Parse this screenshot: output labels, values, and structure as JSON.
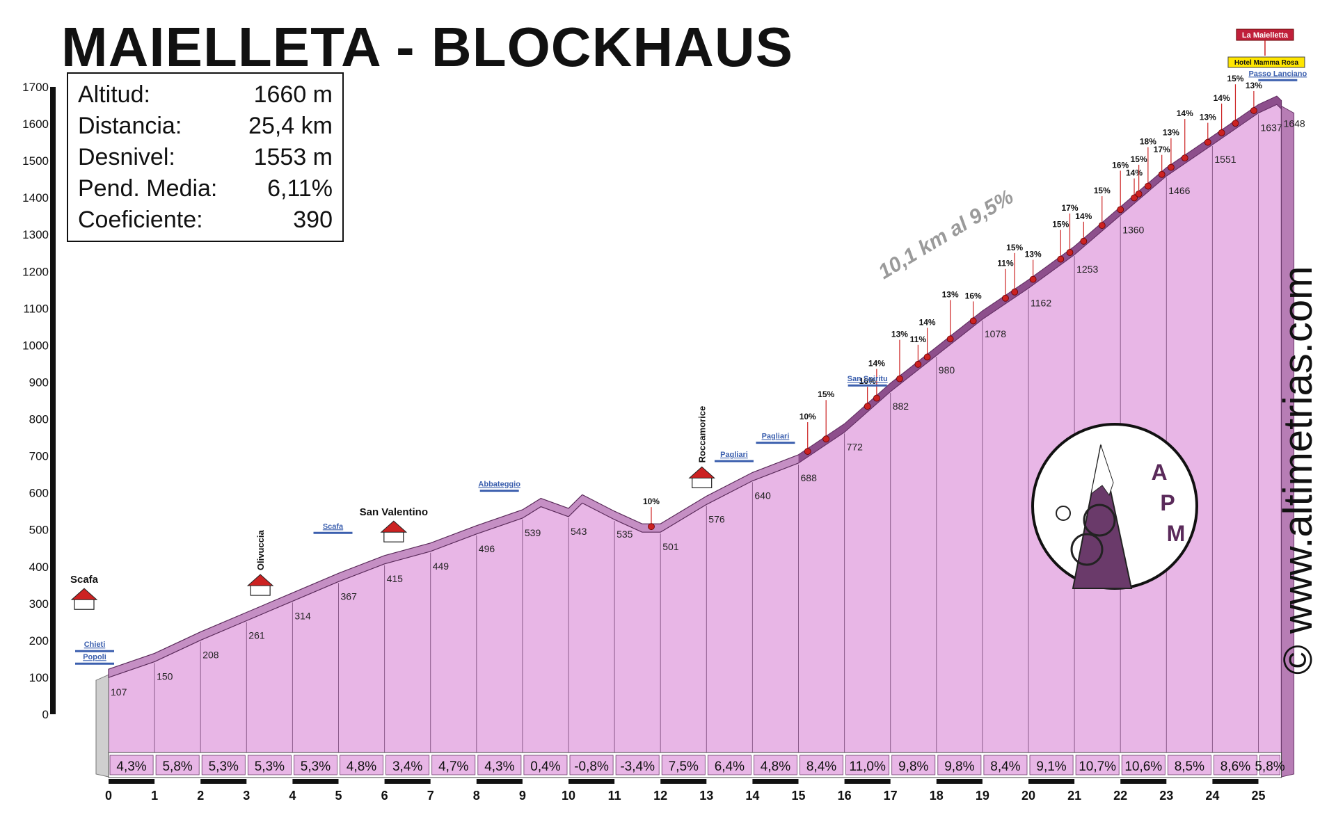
{
  "title": "MAIELLETA - BLOCKHAUS",
  "stats": [
    {
      "label": "Altitud:",
      "value": "1660 m"
    },
    {
      "label": "Distancia:",
      "value": "25,4 km"
    },
    {
      "label": "Desnivel:",
      "value": "1553 m"
    },
    {
      "label": "Pend. Media:",
      "value": "6,11%"
    },
    {
      "label": "Coeficiente:",
      "value": "390"
    }
  ],
  "watermark": "© www.altimetrias.com",
  "logo_text": [
    "A",
    "P",
    "M"
  ],
  "segment_label": "10,1 km al 9,5%",
  "colors": {
    "profile": "#e8b6e6",
    "profile_dark": "#7a3a7a",
    "road": "#c58fc4",
    "red": "#cc2222",
    "blue": "#3b5fae"
  },
  "chart_data": {
    "type": "area",
    "xlabel": "",
    "ylabel": "",
    "xlim": [
      0,
      25.6
    ],
    "ylim": [
      0,
      1700
    ],
    "x_ticks": [
      "0",
      "1",
      "2",
      "3",
      "4",
      "5",
      "6",
      "7",
      "8",
      "9",
      "10",
      "11",
      "12",
      "13",
      "14",
      "15",
      "16",
      "17",
      "18",
      "19",
      "20",
      "21",
      "22",
      "23",
      "24",
      "25"
    ],
    "y_ticks": [
      "0",
      "100",
      "200",
      "300",
      "400",
      "500",
      "600",
      "700",
      "800",
      "900",
      "1000",
      "1100",
      "1200",
      "1300",
      "1400",
      "1500",
      "1600",
      "1700"
    ],
    "profile": [
      [
        0,
        107
      ],
      [
        1,
        150
      ],
      [
        2,
        208
      ],
      [
        3,
        261
      ],
      [
        4,
        314
      ],
      [
        5,
        367
      ],
      [
        6,
        415
      ],
      [
        7,
        449
      ],
      [
        8,
        496
      ],
      [
        9,
        539
      ],
      [
        9.4,
        570
      ],
      [
        10,
        543
      ],
      [
        10.3,
        580
      ],
      [
        11,
        535
      ],
      [
        11.6,
        501
      ],
      [
        12,
        501
      ],
      [
        13,
        576
      ],
      [
        14,
        640
      ],
      [
        15,
        688
      ],
      [
        16,
        772
      ],
      [
        17,
        882
      ],
      [
        18,
        980
      ],
      [
        19,
        1078
      ],
      [
        20,
        1162
      ],
      [
        21,
        1253
      ],
      [
        22,
        1360
      ],
      [
        23,
        1466
      ],
      [
        24,
        1551
      ],
      [
        25,
        1637
      ],
      [
        25.4,
        1660
      ],
      [
        25.5,
        1648
      ]
    ],
    "km_gradients": [
      "4,3%",
      "5,8%",
      "5,3%",
      "5,3%",
      "5,3%",
      "4,8%",
      "3,4%",
      "4,7%",
      "4,3%",
      "0,4%",
      "-0,8%",
      "-3,4%",
      "7,5%",
      "6,4%",
      "4,8%",
      "8,4%",
      "11,0%",
      "9,8%",
      "9,8%",
      "8,4%",
      "9,1%",
      "10,7%",
      "10,6%",
      "8,5%",
      "8,6%",
      "5,8%"
    ],
    "km_altitudes": [
      {
        "x": 0,
        "label": "107"
      },
      {
        "x": 1,
        "label": "150"
      },
      {
        "x": 2,
        "label": "208"
      },
      {
        "x": 3,
        "label": "261"
      },
      {
        "x": 4,
        "label": "314"
      },
      {
        "x": 5,
        "label": "367"
      },
      {
        "x": 6,
        "label": "415"
      },
      {
        "x": 7,
        "label": "449"
      },
      {
        "x": 8,
        "label": "496"
      },
      {
        "x": 9,
        "label": "539"
      },
      {
        "x": 10,
        "label": "543"
      },
      {
        "x": 11,
        "label": "535"
      },
      {
        "x": 12,
        "label": "501"
      },
      {
        "x": 13,
        "label": "576"
      },
      {
        "x": 14,
        "label": "640"
      },
      {
        "x": 15,
        "label": "688"
      },
      {
        "x": 16,
        "label": "772"
      },
      {
        "x": 17,
        "label": "882"
      },
      {
        "x": 18,
        "label": "980"
      },
      {
        "x": 19,
        "label": "1078"
      },
      {
        "x": 20,
        "label": "1162"
      },
      {
        "x": 21,
        "label": "1253"
      },
      {
        "x": 22,
        "label": "1360"
      },
      {
        "x": 23,
        "label": "1466"
      },
      {
        "x": 24,
        "label": "1551"
      },
      {
        "x": 25,
        "label": "1637"
      },
      {
        "x": 25.5,
        "label": "1648"
      }
    ],
    "steep_ramps": [
      {
        "x": 11.8,
        "label": "10%"
      },
      {
        "x": 15.2,
        "label": "10%"
      },
      {
        "x": 15.6,
        "label": "15%"
      },
      {
        "x": 16.5,
        "label": "16%"
      },
      {
        "x": 16.7,
        "label": "14%"
      },
      {
        "x": 17.2,
        "label": "13%"
      },
      {
        "x": 17.6,
        "label": "11%"
      },
      {
        "x": 17.8,
        "label": "14%"
      },
      {
        "x": 18.3,
        "label": "13%"
      },
      {
        "x": 18.8,
        "label": "16%"
      },
      {
        "x": 19.5,
        "label": "11%"
      },
      {
        "x": 19.7,
        "label": "15%"
      },
      {
        "x": 20.1,
        "label": "13%"
      },
      {
        "x": 20.7,
        "label": "15%"
      },
      {
        "x": 20.9,
        "label": "17%"
      },
      {
        "x": 21.2,
        "label": "14%"
      },
      {
        "x": 21.6,
        "label": "15%"
      },
      {
        "x": 22.0,
        "label": "16%"
      },
      {
        "x": 22.3,
        "label": "14%"
      },
      {
        "x": 22.4,
        "label": "15%"
      },
      {
        "x": 22.6,
        "label": "18%"
      },
      {
        "x": 22.9,
        "label": "17%"
      },
      {
        "x": 23.1,
        "label": "13%"
      },
      {
        "x": 23.4,
        "label": "14%"
      },
      {
        "x": 23.9,
        "label": "13%"
      },
      {
        "x": 24.2,
        "label": "14%"
      },
      {
        "x": 24.5,
        "label": "15%"
      },
      {
        "x": 24.9,
        "label": "13%"
      }
    ],
    "places": [
      {
        "x": 0,
        "label": "Scafa"
      },
      {
        "x": 3.3,
        "label": "Olivuccia"
      },
      {
        "x": 6.2,
        "label": "San Valentino"
      },
      {
        "x": 12.9,
        "label": "Roccamorice"
      }
    ],
    "junctions": [
      {
        "x": 0,
        "label": "Chieti"
      },
      {
        "x": 0,
        "label": "Popoli"
      },
      {
        "x": 5,
        "label": "Scafa"
      },
      {
        "x": 8.8,
        "label": "Abbateggio"
      },
      {
        "x": 13.6,
        "label": "Pagliari"
      },
      {
        "x": 14.5,
        "label": "Pagliari"
      },
      {
        "x": 16.5,
        "label": "San Spiritu"
      },
      {
        "x": 25.3,
        "label": "Passo Lanciano"
      }
    ],
    "summit_labels": [
      "La Maielletta",
      "Hotel Mamma Rosa"
    ]
  }
}
